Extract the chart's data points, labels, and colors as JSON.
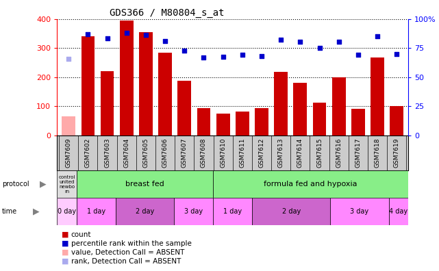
{
  "title": "GDS366 / M80804_s_at",
  "samples": [
    "GSM7609",
    "GSM7602",
    "GSM7603",
    "GSM7604",
    "GSM7605",
    "GSM7606",
    "GSM7607",
    "GSM7608",
    "GSM7610",
    "GSM7611",
    "GSM7612",
    "GSM7613",
    "GSM7614",
    "GSM7615",
    "GSM7616",
    "GSM7617",
    "GSM7618",
    "GSM7619"
  ],
  "count_values": [
    65,
    340,
    220,
    395,
    355,
    285,
    188,
    93,
    75,
    83,
    95,
    218,
    180,
    113,
    200,
    91,
    268,
    100
  ],
  "count_absent": [
    true,
    false,
    false,
    false,
    false,
    false,
    false,
    false,
    false,
    false,
    false,
    false,
    false,
    false,
    false,
    false,
    false,
    false
  ],
  "rank_values": [
    262,
    348,
    334,
    352,
    346,
    323,
    291,
    268,
    271,
    278,
    273,
    328,
    322,
    300,
    322,
    278,
    340,
    280
  ],
  "rank_absent": [
    true,
    false,
    false,
    false,
    false,
    false,
    false,
    false,
    false,
    false,
    false,
    false,
    false,
    false,
    false,
    false,
    false,
    false
  ],
  "bar_color": "#cc0000",
  "bar_absent_color": "#ffaaaa",
  "rank_color": "#0000cc",
  "rank_absent_color": "#aaaaee",
  "left_ylim": [
    0,
    400
  ],
  "left_yticks": [
    0,
    100,
    200,
    300,
    400
  ],
  "right_yticklabels": [
    "0",
    "25",
    "50",
    "75",
    "100%"
  ],
  "protocol_segments": [
    {
      "start": 0,
      "end": 1,
      "label": "control\nunited\nnewbo\nrn",
      "color": "#dddddd"
    },
    {
      "start": 1,
      "end": 8,
      "label": "breast fed",
      "color": "#88ee88"
    },
    {
      "start": 8,
      "end": 18,
      "label": "formula fed and hypoxia",
      "color": "#88ee88"
    }
  ],
  "time_segments": [
    {
      "start": 0,
      "end": 1,
      "label": "0 day",
      "color": "#ffccff"
    },
    {
      "start": 1,
      "end": 3,
      "label": "1 day",
      "color": "#ff88ff"
    },
    {
      "start": 3,
      "end": 6,
      "label": "2 day",
      "color": "#cc66cc"
    },
    {
      "start": 6,
      "end": 8,
      "label": "3 day",
      "color": "#ff88ff"
    },
    {
      "start": 8,
      "end": 10,
      "label": "1 day",
      "color": "#ff88ff"
    },
    {
      "start": 10,
      "end": 14,
      "label": "2 day",
      "color": "#cc66cc"
    },
    {
      "start": 14,
      "end": 17,
      "label": "3 day",
      "color": "#ff88ff"
    },
    {
      "start": 17,
      "end": 18,
      "label": "4 day",
      "color": "#ff88ff"
    }
  ],
  "legend_items": [
    {
      "label": "count",
      "color": "#cc0000"
    },
    {
      "label": "percentile rank within the sample",
      "color": "#0000cc"
    },
    {
      "label": "value, Detection Call = ABSENT",
      "color": "#ffaaaa"
    },
    {
      "label": "rank, Detection Call = ABSENT",
      "color": "#aaaaee"
    }
  ]
}
